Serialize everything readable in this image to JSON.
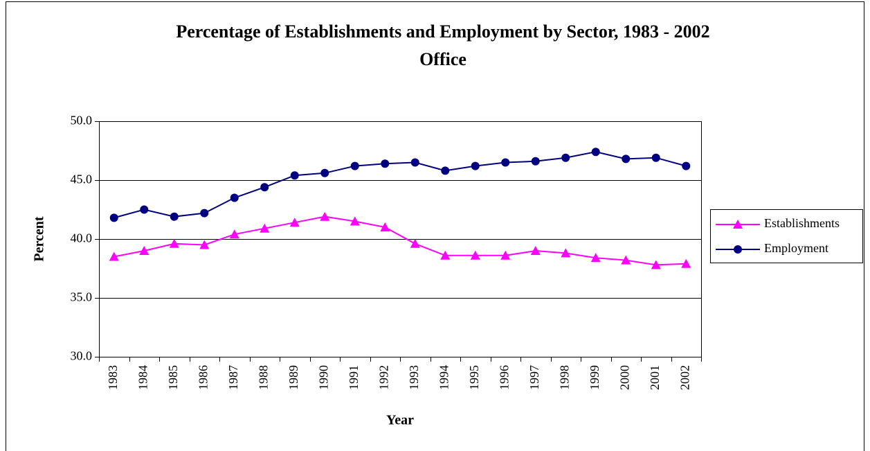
{
  "chart_data": {
    "type": "line",
    "title": "Percentage of Establishments and Employment by Sector, 1983 - 2002",
    "subtitle": "Office",
    "x_label": "Year",
    "y_label": "Percent",
    "categories": [
      "1983",
      "1984",
      "1985",
      "1986",
      "1987",
      "1988",
      "1989",
      "1990",
      "1991",
      "1992",
      "1993",
      "1994",
      "1995",
      "1996",
      "1997",
      "1998",
      "1999",
      "2000",
      "2001",
      "2002"
    ],
    "series": [
      {
        "name": "Establishments",
        "color": "#ff00ff",
        "marker": "triangle",
        "values": [
          38.5,
          39.0,
          39.6,
          39.5,
          40.4,
          40.9,
          41.4,
          41.9,
          41.5,
          41.0,
          39.6,
          38.6,
          38.6,
          38.6,
          39.0,
          38.8,
          38.4,
          38.2,
          37.8,
          37.9
        ]
      },
      {
        "name": "Employment",
        "color": "#000080",
        "marker": "circle",
        "values": [
          41.8,
          42.5,
          41.9,
          42.2,
          43.5,
          44.4,
          45.4,
          45.6,
          46.2,
          46.4,
          46.5,
          45.8,
          46.2,
          46.5,
          46.6,
          46.9,
          47.4,
          46.8,
          46.9,
          46.2
        ]
      }
    ],
    "ylim": [
      30,
      50
    ],
    "yticks": [
      {
        "value": 30,
        "label": "30.0"
      },
      {
        "value": 35,
        "label": "35.0"
      },
      {
        "value": 40,
        "label": "40.0"
      },
      {
        "value": 45,
        "label": "45.0"
      },
      {
        "value": 50,
        "label": "50.0"
      }
    ],
    "grid": true,
    "legend": "right"
  }
}
